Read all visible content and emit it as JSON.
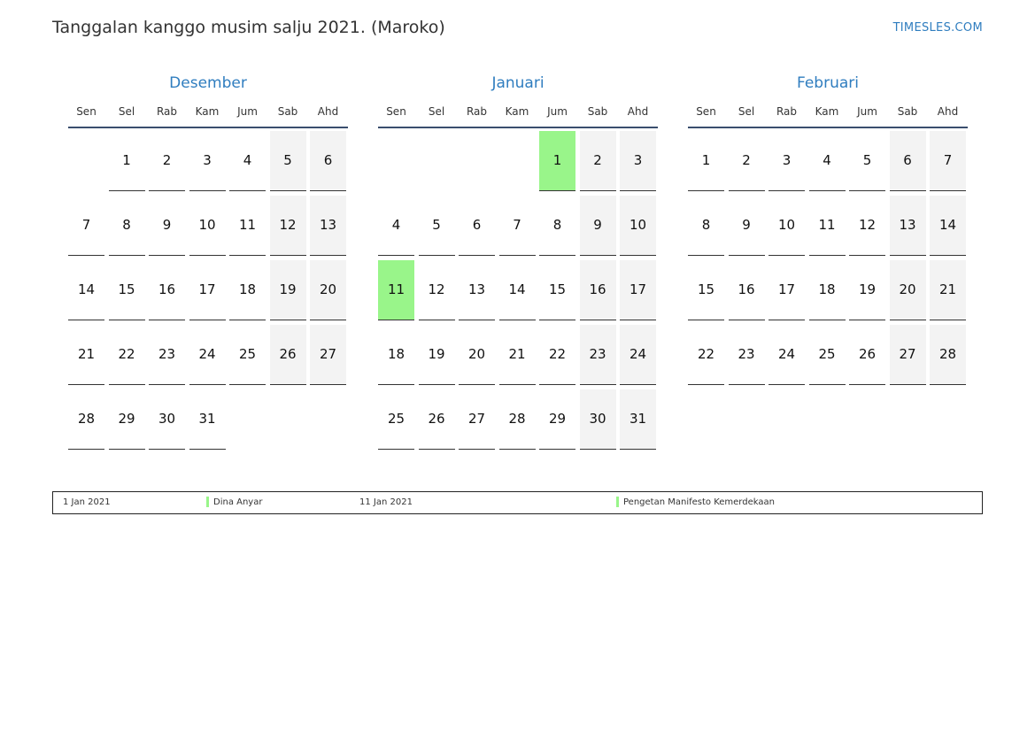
{
  "header": {
    "title": "Tanggalan kanggo musim salju 2021. (Maroko)",
    "brand": "TIMESLES.COM"
  },
  "colors": {
    "accent": "#2f7dbf",
    "holiday": "#99f58a",
    "weekend": "#f3f3f3"
  },
  "weekdays": [
    "Sen",
    "Sel",
    "Rab",
    "Kam",
    "Jum",
    "Sab",
    "Ahd"
  ],
  "months": [
    {
      "name": "Desember",
      "start_offset": 1,
      "days": 31,
      "holidays": []
    },
    {
      "name": "Januari",
      "start_offset": 4,
      "days": 31,
      "holidays": [
        1,
        11
      ]
    },
    {
      "name": "Februari",
      "start_offset": 0,
      "days": 28,
      "holidays": []
    }
  ],
  "legend": [
    {
      "date": "1 Jan 2021",
      "name": "Dina Anyar"
    },
    {
      "date": "11 Jan 2021",
      "name": "Pengetan Manifesto Kemerdekaan"
    }
  ]
}
